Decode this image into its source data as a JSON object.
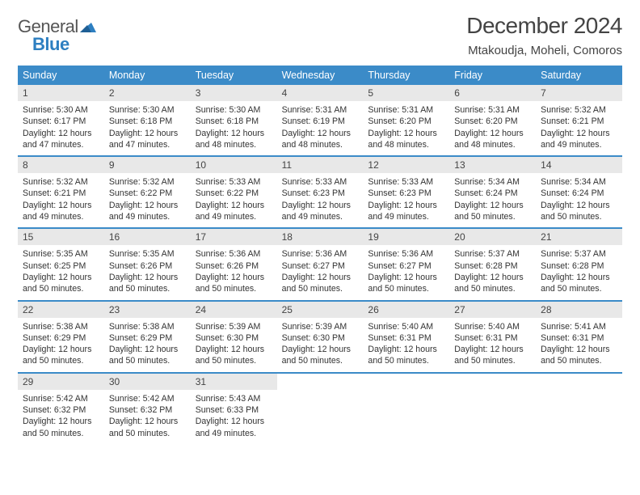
{
  "logo": {
    "word1": "General",
    "word2": "Blue"
  },
  "title": "December 2024",
  "location": "Mtakoudja, Moheli, Comoros",
  "day_headers": [
    "Sunday",
    "Monday",
    "Tuesday",
    "Wednesday",
    "Thursday",
    "Friday",
    "Saturday"
  ],
  "colors": {
    "header_bg": "#3b8bc8",
    "header_text": "#ffffff",
    "daynum_bg": "#e8e8e8",
    "week_divider": "#3b8bc8",
    "logo_gray": "#555555",
    "logo_blue": "#2d7fc1"
  },
  "weeks": [
    [
      {
        "n": "1",
        "sr": "Sunrise: 5:30 AM",
        "ss": "Sunset: 6:17 PM",
        "dl": "Daylight: 12 hours and 47 minutes."
      },
      {
        "n": "2",
        "sr": "Sunrise: 5:30 AM",
        "ss": "Sunset: 6:18 PM",
        "dl": "Daylight: 12 hours and 47 minutes."
      },
      {
        "n": "3",
        "sr": "Sunrise: 5:30 AM",
        "ss": "Sunset: 6:18 PM",
        "dl": "Daylight: 12 hours and 48 minutes."
      },
      {
        "n": "4",
        "sr": "Sunrise: 5:31 AM",
        "ss": "Sunset: 6:19 PM",
        "dl": "Daylight: 12 hours and 48 minutes."
      },
      {
        "n": "5",
        "sr": "Sunrise: 5:31 AM",
        "ss": "Sunset: 6:20 PM",
        "dl": "Daylight: 12 hours and 48 minutes."
      },
      {
        "n": "6",
        "sr": "Sunrise: 5:31 AM",
        "ss": "Sunset: 6:20 PM",
        "dl": "Daylight: 12 hours and 48 minutes."
      },
      {
        "n": "7",
        "sr": "Sunrise: 5:32 AM",
        "ss": "Sunset: 6:21 PM",
        "dl": "Daylight: 12 hours and 49 minutes."
      }
    ],
    [
      {
        "n": "8",
        "sr": "Sunrise: 5:32 AM",
        "ss": "Sunset: 6:21 PM",
        "dl": "Daylight: 12 hours and 49 minutes."
      },
      {
        "n": "9",
        "sr": "Sunrise: 5:32 AM",
        "ss": "Sunset: 6:22 PM",
        "dl": "Daylight: 12 hours and 49 minutes."
      },
      {
        "n": "10",
        "sr": "Sunrise: 5:33 AM",
        "ss": "Sunset: 6:22 PM",
        "dl": "Daylight: 12 hours and 49 minutes."
      },
      {
        "n": "11",
        "sr": "Sunrise: 5:33 AM",
        "ss": "Sunset: 6:23 PM",
        "dl": "Daylight: 12 hours and 49 minutes."
      },
      {
        "n": "12",
        "sr": "Sunrise: 5:33 AM",
        "ss": "Sunset: 6:23 PM",
        "dl": "Daylight: 12 hours and 49 minutes."
      },
      {
        "n": "13",
        "sr": "Sunrise: 5:34 AM",
        "ss": "Sunset: 6:24 PM",
        "dl": "Daylight: 12 hours and 50 minutes."
      },
      {
        "n": "14",
        "sr": "Sunrise: 5:34 AM",
        "ss": "Sunset: 6:24 PM",
        "dl": "Daylight: 12 hours and 50 minutes."
      }
    ],
    [
      {
        "n": "15",
        "sr": "Sunrise: 5:35 AM",
        "ss": "Sunset: 6:25 PM",
        "dl": "Daylight: 12 hours and 50 minutes."
      },
      {
        "n": "16",
        "sr": "Sunrise: 5:35 AM",
        "ss": "Sunset: 6:26 PM",
        "dl": "Daylight: 12 hours and 50 minutes."
      },
      {
        "n": "17",
        "sr": "Sunrise: 5:36 AM",
        "ss": "Sunset: 6:26 PM",
        "dl": "Daylight: 12 hours and 50 minutes."
      },
      {
        "n": "18",
        "sr": "Sunrise: 5:36 AM",
        "ss": "Sunset: 6:27 PM",
        "dl": "Daylight: 12 hours and 50 minutes."
      },
      {
        "n": "19",
        "sr": "Sunrise: 5:36 AM",
        "ss": "Sunset: 6:27 PM",
        "dl": "Daylight: 12 hours and 50 minutes."
      },
      {
        "n": "20",
        "sr": "Sunrise: 5:37 AM",
        "ss": "Sunset: 6:28 PM",
        "dl": "Daylight: 12 hours and 50 minutes."
      },
      {
        "n": "21",
        "sr": "Sunrise: 5:37 AM",
        "ss": "Sunset: 6:28 PM",
        "dl": "Daylight: 12 hours and 50 minutes."
      }
    ],
    [
      {
        "n": "22",
        "sr": "Sunrise: 5:38 AM",
        "ss": "Sunset: 6:29 PM",
        "dl": "Daylight: 12 hours and 50 minutes."
      },
      {
        "n": "23",
        "sr": "Sunrise: 5:38 AM",
        "ss": "Sunset: 6:29 PM",
        "dl": "Daylight: 12 hours and 50 minutes."
      },
      {
        "n": "24",
        "sr": "Sunrise: 5:39 AM",
        "ss": "Sunset: 6:30 PM",
        "dl": "Daylight: 12 hours and 50 minutes."
      },
      {
        "n": "25",
        "sr": "Sunrise: 5:39 AM",
        "ss": "Sunset: 6:30 PM",
        "dl": "Daylight: 12 hours and 50 minutes."
      },
      {
        "n": "26",
        "sr": "Sunrise: 5:40 AM",
        "ss": "Sunset: 6:31 PM",
        "dl": "Daylight: 12 hours and 50 minutes."
      },
      {
        "n": "27",
        "sr": "Sunrise: 5:40 AM",
        "ss": "Sunset: 6:31 PM",
        "dl": "Daylight: 12 hours and 50 minutes."
      },
      {
        "n": "28",
        "sr": "Sunrise: 5:41 AM",
        "ss": "Sunset: 6:31 PM",
        "dl": "Daylight: 12 hours and 50 minutes."
      }
    ],
    [
      {
        "n": "29",
        "sr": "Sunrise: 5:42 AM",
        "ss": "Sunset: 6:32 PM",
        "dl": "Daylight: 12 hours and 50 minutes."
      },
      {
        "n": "30",
        "sr": "Sunrise: 5:42 AM",
        "ss": "Sunset: 6:32 PM",
        "dl": "Daylight: 12 hours and 50 minutes."
      },
      {
        "n": "31",
        "sr": "Sunrise: 5:43 AM",
        "ss": "Sunset: 6:33 PM",
        "dl": "Daylight: 12 hours and 49 minutes."
      },
      {
        "empty": true
      },
      {
        "empty": true
      },
      {
        "empty": true
      },
      {
        "empty": true
      }
    ]
  ]
}
